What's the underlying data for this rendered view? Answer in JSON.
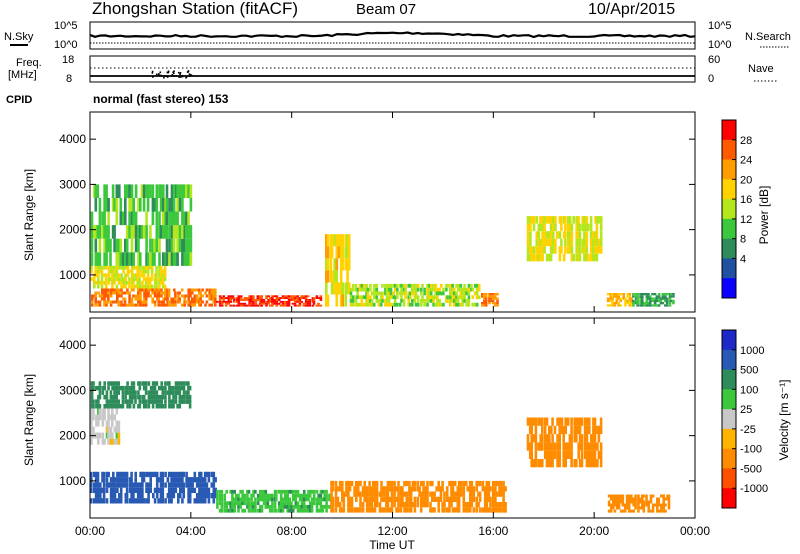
{
  "header": {
    "station": "Zhongshan Station (fitACF)",
    "beam": "Beam 07",
    "date": "10/Apr/2015"
  },
  "top_panel": {
    "left_label": "N.Sky",
    "right_label": "N.Search",
    "left_ticks": [
      "10^5",
      "10^0"
    ],
    "right_ticks": [
      "10^5",
      "10^0"
    ]
  },
  "freq_panel": {
    "left_label_1": "Freq.",
    "left_label_2": "[MHz]",
    "left_ticks": [
      "18",
      "8"
    ],
    "right_label": "Nave",
    "right_ticks": [
      "60",
      "0"
    ],
    "cpid_label": "CPID"
  },
  "cpid_text": "normal (fast stereo) 153",
  "x_axis": {
    "ticks": [
      "00:00",
      "04:00",
      "08:00",
      "12:00",
      "16:00",
      "20:00",
      "00:00"
    ],
    "label": "Time UT"
  },
  "power_panel": {
    "ylabel": "Slant Range [km]",
    "yticks": [
      "4000",
      "3000",
      "2000",
      "1000"
    ],
    "colorbar_label": "Power [dB]",
    "colorbar_ticks": [
      "28",
      "24",
      "20",
      "16",
      "12",
      "8",
      "4"
    ],
    "colorbar_colors": [
      "#ff0000",
      "#ff5a00",
      "#ff9c00",
      "#ffd200",
      "#b4e61e",
      "#3cc83c",
      "#2d8c5a",
      "#2050a0",
      "#0a00ff"
    ]
  },
  "velocity_panel": {
    "ylabel": "Slant Range [km]",
    "yticks": [
      "4000",
      "3000",
      "2000",
      "1000"
    ],
    "colorbar_label": "Velocity [m s⁻¹]",
    "colorbar_ticks": [
      "1000",
      "500",
      "100",
      "25",
      "-25",
      "-100",
      "-500",
      "-1000"
    ],
    "colorbar_colors": [
      "#1e28c8",
      "#285ab4",
      "#2d8c5a",
      "#3cc83c",
      "#c8c8c8",
      "#ffb400",
      "#ff8c00",
      "#ff5000",
      "#ff0000"
    ]
  },
  "chart_data": [
    {
      "type": "heatmap",
      "title": "Power",
      "xlabel": "Time UT",
      "ylabel": "Slant Range [km]",
      "xlim": [
        0,
        24
      ],
      "ylim": [
        180,
        4600
      ],
      "colorbar": "Power [dB]",
      "colorbar_range": [
        0,
        32
      ],
      "regions": [
        {
          "t": [
            0.0,
            5.0
          ],
          "r": [
            300,
            700
          ],
          "value": 26
        },
        {
          "t": [
            5.0,
            9.2
          ],
          "r": [
            300,
            550
          ],
          "value": 30
        },
        {
          "t": [
            0.0,
            3.0
          ],
          "r": [
            700,
            1200
          ],
          "value": 18
        },
        {
          "t": [
            0.0,
            4.0
          ],
          "r": [
            1200,
            3000
          ],
          "value": 12
        },
        {
          "t": [
            9.3,
            10.3
          ],
          "r": [
            300,
            1900
          ],
          "value": 20
        },
        {
          "t": [
            10.3,
            15.5
          ],
          "r": [
            300,
            800
          ],
          "value": 16
        },
        {
          "t": [
            15.5,
            16.2
          ],
          "r": [
            300,
            600
          ],
          "value": 26
        },
        {
          "t": [
            17.3,
            20.3
          ],
          "r": [
            1300,
            2300
          ],
          "value": 18
        },
        {
          "t": [
            20.5,
            21.5
          ],
          "r": [
            300,
            600
          ],
          "value": 22
        },
        {
          "t": [
            21.5,
            23.2
          ],
          "r": [
            300,
            600
          ],
          "value": 10
        }
      ]
    },
    {
      "type": "heatmap",
      "title": "Velocity",
      "xlabel": "Time UT",
      "ylabel": "Slant Range [km]",
      "xlim": [
        0,
        24
      ],
      "ylim": [
        180,
        4600
      ],
      "colorbar": "Velocity [m s-1]",
      "regions": [
        {
          "t": [
            0.0,
            5.0
          ],
          "r": [
            500,
            1200
          ],
          "value": 700
        },
        {
          "t": [
            5.0,
            9.5
          ],
          "r": [
            300,
            800
          ],
          "value": 80
        },
        {
          "t": [
            0.0,
            1.2
          ],
          "r": [
            1800,
            2600
          ],
          "value": 0
        },
        {
          "t": [
            0.0,
            4.0
          ],
          "r": [
            2600,
            3200
          ],
          "value": 300
        },
        {
          "t": [
            9.5,
            16.5
          ],
          "r": [
            300,
            1000
          ],
          "value": -200
        },
        {
          "t": [
            17.3,
            20.3
          ],
          "r": [
            1300,
            2400
          ],
          "value": -250
        },
        {
          "t": [
            20.5,
            23.0
          ],
          "r": [
            300,
            700
          ],
          "value": -150
        }
      ]
    }
  ]
}
